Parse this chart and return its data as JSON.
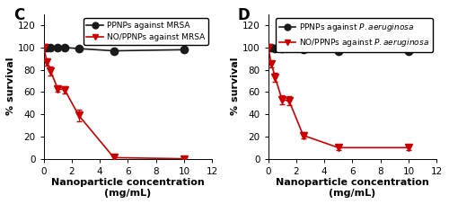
{
  "panel_C": {
    "label": "C",
    "legend": [
      "PPNPs against MRSA",
      "NO/PPNPs against MRSA"
    ],
    "xlabel": "Nanoparticle concentration\n(mg/mL)",
    "ylabel": "% survival",
    "xlim": [
      0,
      12
    ],
    "ylim": [
      0,
      130
    ],
    "yticks": [
      0,
      20,
      40,
      60,
      80,
      100,
      120
    ],
    "xticks": [
      0,
      2,
      4,
      6,
      8,
      10,
      12
    ],
    "ppnps_x": [
      0,
      0.25,
      0.5,
      1,
      1.5,
      2.5,
      5,
      10
    ],
    "ppnps_y": [
      100,
      100,
      100,
      100,
      100,
      99,
      97,
      98
    ],
    "ppnps_err": [
      1,
      1,
      1,
      1,
      1,
      1,
      2,
      1
    ],
    "noppnps_x": [
      0,
      0.25,
      0.5,
      1,
      1.5,
      2.5,
      5,
      10
    ],
    "noppnps_y": [
      100,
      87,
      79,
      63,
      62,
      39,
      1,
      0
    ],
    "noppnps_err": [
      2,
      3,
      4,
      3,
      3,
      5,
      2,
      1
    ],
    "italic_species": false
  },
  "panel_D": {
    "label": "D",
    "legend": [
      "PPNPs against P. aeruginosa",
      "NO/PPNPs against P. aeruginosa"
    ],
    "xlabel": "Nanoparticle concentration\n(mg/mL)",
    "ylabel": "% survival",
    "xlim": [
      0,
      12
    ],
    "ylim": [
      0,
      130
    ],
    "yticks": [
      0,
      20,
      40,
      60,
      80,
      100,
      120
    ],
    "xticks": [
      0,
      2,
      4,
      6,
      8,
      10,
      12
    ],
    "ppnps_x": [
      0,
      0.25,
      0.5,
      1,
      1.5,
      2.5,
      5,
      10
    ],
    "ppnps_y": [
      100,
      100,
      99,
      99,
      100,
      98,
      97,
      97
    ],
    "ppnps_err": [
      1,
      1,
      1,
      1,
      1,
      1,
      2,
      1
    ],
    "noppnps_x": [
      0,
      0.25,
      0.5,
      1,
      1.5,
      2.5,
      5,
      10
    ],
    "noppnps_y": [
      100,
      85,
      73,
      53,
      52,
      21,
      10,
      10
    ],
    "noppnps_err": [
      2,
      3,
      4,
      4,
      4,
      3,
      2,
      2
    ],
    "italic_species": true
  },
  "black_color": "#1a1a1a",
  "red_color": "#cc0000",
  "marker_size": 6,
  "line_width": 1.2,
  "font_size": 7.5,
  "label_font_size": 8,
  "legend_font_size": 6.5
}
